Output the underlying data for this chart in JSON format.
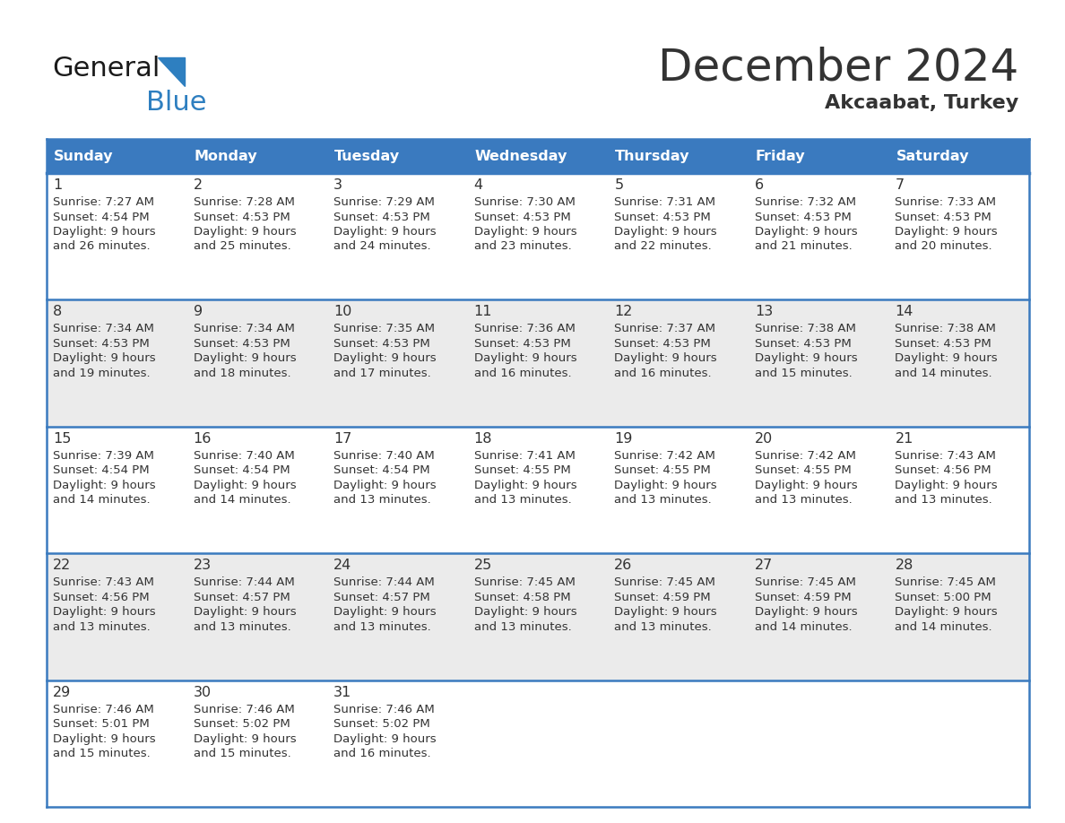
{
  "title": "December 2024",
  "subtitle": "Akcaabat, Turkey",
  "header_color": "#3a7abf",
  "header_text_color": "#ffffff",
  "cell_bg_white": "#ffffff",
  "cell_bg_gray": "#ebebeb",
  "border_color": "#3a7abf",
  "sep_color": "#3a7abf",
  "text_color": "#333333",
  "logo_black": "#1a1a1a",
  "logo_blue": "#2e7fc0",
  "days_of_week": [
    "Sunday",
    "Monday",
    "Tuesday",
    "Wednesday",
    "Thursday",
    "Friday",
    "Saturday"
  ],
  "weeks": [
    [
      {
        "day": "1",
        "sunrise": "7:27 AM",
        "sunset": "4:54 PM",
        "daylight_h": "9 hours",
        "daylight_m": "and 26 minutes."
      },
      {
        "day": "2",
        "sunrise": "7:28 AM",
        "sunset": "4:53 PM",
        "daylight_h": "9 hours",
        "daylight_m": "and 25 minutes."
      },
      {
        "day": "3",
        "sunrise": "7:29 AM",
        "sunset": "4:53 PM",
        "daylight_h": "9 hours",
        "daylight_m": "and 24 minutes."
      },
      {
        "day": "4",
        "sunrise": "7:30 AM",
        "sunset": "4:53 PM",
        "daylight_h": "9 hours",
        "daylight_m": "and 23 minutes."
      },
      {
        "day": "5",
        "sunrise": "7:31 AM",
        "sunset": "4:53 PM",
        "daylight_h": "9 hours",
        "daylight_m": "and 22 minutes."
      },
      {
        "day": "6",
        "sunrise": "7:32 AM",
        "sunset": "4:53 PM",
        "daylight_h": "9 hours",
        "daylight_m": "and 21 minutes."
      },
      {
        "day": "7",
        "sunrise": "7:33 AM",
        "sunset": "4:53 PM",
        "daylight_h": "9 hours",
        "daylight_m": "and 20 minutes."
      }
    ],
    [
      {
        "day": "8",
        "sunrise": "7:34 AM",
        "sunset": "4:53 PM",
        "daylight_h": "9 hours",
        "daylight_m": "and 19 minutes."
      },
      {
        "day": "9",
        "sunrise": "7:34 AM",
        "sunset": "4:53 PM",
        "daylight_h": "9 hours",
        "daylight_m": "and 18 minutes."
      },
      {
        "day": "10",
        "sunrise": "7:35 AM",
        "sunset": "4:53 PM",
        "daylight_h": "9 hours",
        "daylight_m": "and 17 minutes."
      },
      {
        "day": "11",
        "sunrise": "7:36 AM",
        "sunset": "4:53 PM",
        "daylight_h": "9 hours",
        "daylight_m": "and 16 minutes."
      },
      {
        "day": "12",
        "sunrise": "7:37 AM",
        "sunset": "4:53 PM",
        "daylight_h": "9 hours",
        "daylight_m": "and 16 minutes."
      },
      {
        "day": "13",
        "sunrise": "7:38 AM",
        "sunset": "4:53 PM",
        "daylight_h": "9 hours",
        "daylight_m": "and 15 minutes."
      },
      {
        "day": "14",
        "sunrise": "7:38 AM",
        "sunset": "4:53 PM",
        "daylight_h": "9 hours",
        "daylight_m": "and 14 minutes."
      }
    ],
    [
      {
        "day": "15",
        "sunrise": "7:39 AM",
        "sunset": "4:54 PM",
        "daylight_h": "9 hours",
        "daylight_m": "and 14 minutes."
      },
      {
        "day": "16",
        "sunrise": "7:40 AM",
        "sunset": "4:54 PM",
        "daylight_h": "9 hours",
        "daylight_m": "and 14 minutes."
      },
      {
        "day": "17",
        "sunrise": "7:40 AM",
        "sunset": "4:54 PM",
        "daylight_h": "9 hours",
        "daylight_m": "and 13 minutes."
      },
      {
        "day": "18",
        "sunrise": "7:41 AM",
        "sunset": "4:55 PM",
        "daylight_h": "9 hours",
        "daylight_m": "and 13 minutes."
      },
      {
        "day": "19",
        "sunrise": "7:42 AM",
        "sunset": "4:55 PM",
        "daylight_h": "9 hours",
        "daylight_m": "and 13 minutes."
      },
      {
        "day": "20",
        "sunrise": "7:42 AM",
        "sunset": "4:55 PM",
        "daylight_h": "9 hours",
        "daylight_m": "and 13 minutes."
      },
      {
        "day": "21",
        "sunrise": "7:43 AM",
        "sunset": "4:56 PM",
        "daylight_h": "9 hours",
        "daylight_m": "and 13 minutes."
      }
    ],
    [
      {
        "day": "22",
        "sunrise": "7:43 AM",
        "sunset": "4:56 PM",
        "daylight_h": "9 hours",
        "daylight_m": "and 13 minutes."
      },
      {
        "day": "23",
        "sunrise": "7:44 AM",
        "sunset": "4:57 PM",
        "daylight_h": "9 hours",
        "daylight_m": "and 13 minutes."
      },
      {
        "day": "24",
        "sunrise": "7:44 AM",
        "sunset": "4:57 PM",
        "daylight_h": "9 hours",
        "daylight_m": "and 13 minutes."
      },
      {
        "day": "25",
        "sunrise": "7:45 AM",
        "sunset": "4:58 PM",
        "daylight_h": "9 hours",
        "daylight_m": "and 13 minutes."
      },
      {
        "day": "26",
        "sunrise": "7:45 AM",
        "sunset": "4:59 PM",
        "daylight_h": "9 hours",
        "daylight_m": "and 13 minutes."
      },
      {
        "day": "27",
        "sunrise": "7:45 AM",
        "sunset": "4:59 PM",
        "daylight_h": "9 hours",
        "daylight_m": "and 14 minutes."
      },
      {
        "day": "28",
        "sunrise": "7:45 AM",
        "sunset": "5:00 PM",
        "daylight_h": "9 hours",
        "daylight_m": "and 14 minutes."
      }
    ],
    [
      {
        "day": "29",
        "sunrise": "7:46 AM",
        "sunset": "5:01 PM",
        "daylight_h": "9 hours",
        "daylight_m": "and 15 minutes."
      },
      {
        "day": "30",
        "sunrise": "7:46 AM",
        "sunset": "5:02 PM",
        "daylight_h": "9 hours",
        "daylight_m": "and 15 minutes."
      },
      {
        "day": "31",
        "sunrise": "7:46 AM",
        "sunset": "5:02 PM",
        "daylight_h": "9 hours",
        "daylight_m": "and 16 minutes."
      },
      null,
      null,
      null,
      null
    ]
  ]
}
